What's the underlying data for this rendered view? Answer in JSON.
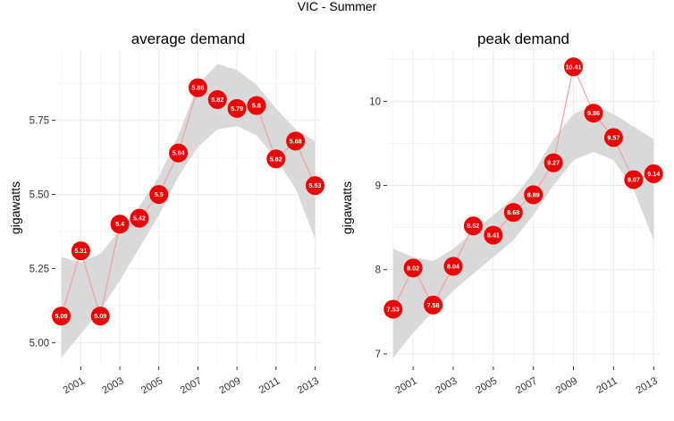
{
  "figure_title": "VIC - Summer",
  "colors": {
    "point": "#ee0000",
    "point_label": "#ffffff",
    "line": "#f4a0a0",
    "smooth_band": "#d9d9d9",
    "panel_background": "#ffffff",
    "grid": "#ebebeb"
  },
  "chart_data": [
    {
      "type": "line",
      "title": "average demand",
      "xlabel": "",
      "ylabel": "gigawatts",
      "x": [
        2000,
        2001,
        2002,
        2003,
        2004,
        2005,
        2006,
        2007,
        2008,
        2009,
        2010,
        2011,
        2012,
        2013
      ],
      "values": [
        5.09,
        5.31,
        5.09,
        5.4,
        5.42,
        5.5,
        5.64,
        5.86,
        5.82,
        5.79,
        5.8,
        5.62,
        5.68,
        5.53
      ],
      "point_labels": [
        "5.09",
        "5.31",
        "5.09",
        "5.4",
        "5.42",
        "5.5",
        "5.64",
        "5.86",
        "5.82",
        "5.79",
        "5.8",
        "5.62",
        "5.68",
        "5.53"
      ],
      "x_ticks": [
        2001,
        2003,
        2005,
        2007,
        2009,
        2011,
        2013
      ],
      "x_tick_labels": [
        "2001",
        "2003",
        "2005",
        "2007",
        "2009",
        "2011",
        "2013"
      ],
      "y_ticks": [
        5.0,
        5.25,
        5.5,
        5.75
      ],
      "y_tick_labels": [
        "5.00",
        "5.25",
        "5.50",
        "5.75"
      ],
      "xlim": [
        1999.7,
        2013.3
      ],
      "ylim": [
        4.92,
        5.99
      ],
      "smooth_band": {
        "x": [
          2000,
          2001,
          2002,
          2003,
          2004,
          2005,
          2006,
          2007,
          2008,
          2009,
          2010,
          2011,
          2012,
          2013
        ],
        "upper": [
          5.29,
          5.27,
          5.3,
          5.38,
          5.46,
          5.56,
          5.7,
          5.87,
          5.94,
          5.92,
          5.87,
          5.79,
          5.72,
          5.68
        ],
        "lower": [
          4.95,
          5.03,
          5.11,
          5.21,
          5.32,
          5.43,
          5.56,
          5.66,
          5.72,
          5.73,
          5.7,
          5.62,
          5.52,
          5.35
        ]
      },
      "grid": true
    },
    {
      "type": "line",
      "title": "peak demand",
      "xlabel": "",
      "ylabel": "gigawatts",
      "x": [
        2000,
        2001,
        2002,
        2003,
        2004,
        2005,
        2006,
        2007,
        2008,
        2009,
        2010,
        2011,
        2012,
        2013
      ],
      "values": [
        7.53,
        8.02,
        7.58,
        8.04,
        8.52,
        8.41,
        8.68,
        8.89,
        9.27,
        10.41,
        9.86,
        9.57,
        9.07,
        9.14
      ],
      "point_labels": [
        "7.53",
        "8.02",
        "7.58",
        "8.04",
        "8.52",
        "8.41",
        "8.68",
        "8.89",
        "9.27",
        "10.41",
        "9.86",
        "9.57",
        "9.07",
        "9.14"
      ],
      "x_ticks": [
        2001,
        2003,
        2005,
        2007,
        2009,
        2011,
        2013
      ],
      "x_tick_labels": [
        "2001",
        "2003",
        "2005",
        "2007",
        "2009",
        "2011",
        "2013"
      ],
      "y_ticks": [
        7,
        8,
        9,
        10
      ],
      "y_tick_labels": [
        "7",
        "8",
        "9",
        "10"
      ],
      "xlim": [
        1999.7,
        2013.3
      ],
      "ylim": [
        6.85,
        10.62
      ],
      "smooth_band": {
        "x": [
          2000,
          2001,
          2002,
          2003,
          2004,
          2005,
          2006,
          2007,
          2008,
          2009,
          2010,
          2011,
          2012,
          2013
        ],
        "upper": [
          8.25,
          8.15,
          8.1,
          8.25,
          8.45,
          8.65,
          8.85,
          9.15,
          9.55,
          9.85,
          9.95,
          9.85,
          9.7,
          9.55
        ],
        "lower": [
          6.95,
          7.25,
          7.5,
          7.75,
          7.95,
          8.15,
          8.35,
          8.65,
          9.0,
          9.3,
          9.4,
          9.3,
          8.95,
          8.35
        ]
      },
      "grid": true
    }
  ]
}
